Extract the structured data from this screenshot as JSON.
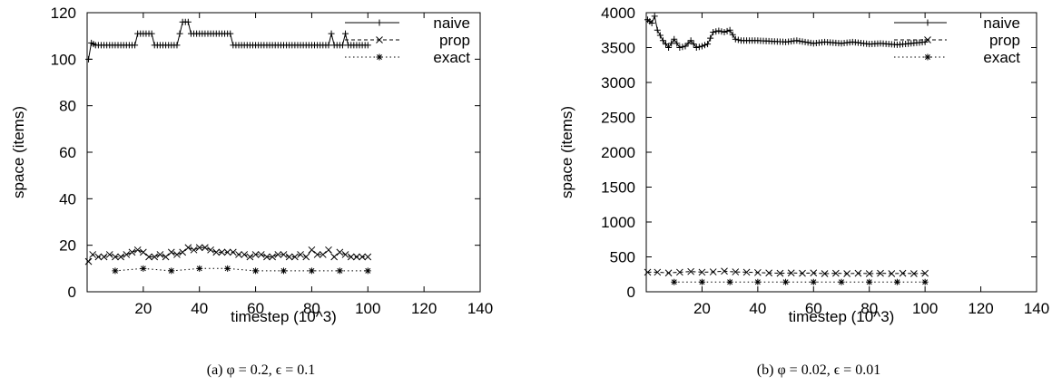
{
  "chart_data": [
    {
      "type": "line",
      "caption": "(a) φ = 0.2, ϵ = 0.1",
      "xlabel": "timestep (10^3)",
      "ylabel": "space (items)",
      "xlim": [
        0,
        140
      ],
      "ylim": [
        0,
        120
      ],
      "xticks": [
        20,
        40,
        60,
        80,
        100,
        120,
        140
      ],
      "yticks": [
        0,
        20,
        40,
        60,
        80,
        100,
        120
      ],
      "grid": false,
      "legend": "top-right",
      "series": [
        {
          "name": "naive",
          "style": "solid-plus",
          "points": [
            [
              0.5,
              100
            ],
            [
              1.5,
              107
            ],
            [
              3,
              106
            ],
            [
              17,
              106
            ],
            [
              18,
              111
            ],
            [
              23,
              111
            ],
            [
              24,
              106
            ],
            [
              32,
              106
            ],
            [
              33,
              111
            ],
            [
              34,
              116
            ],
            [
              36,
              116
            ],
            [
              37,
              111
            ],
            [
              51,
              111
            ],
            [
              52,
              106
            ],
            [
              86,
              106
            ],
            [
              87,
              111
            ],
            [
              88,
              106
            ],
            [
              91,
              106
            ],
            [
              92,
              111
            ],
            [
              93,
              106
            ],
            [
              100,
              106
            ]
          ]
        },
        {
          "name": "prop",
          "style": "dashed-x",
          "points": [
            [
              0.5,
              13
            ],
            [
              2,
              16
            ],
            [
              4,
              15
            ],
            [
              6,
              15
            ],
            [
              8,
              16
            ],
            [
              10,
              15
            ],
            [
              12,
              15
            ],
            [
              14,
              16
            ],
            [
              16,
              17
            ],
            [
              18,
              18
            ],
            [
              20,
              17
            ],
            [
              22,
              15
            ],
            [
              24,
              15
            ],
            [
              26,
              16
            ],
            [
              28,
              15
            ],
            [
              30,
              17
            ],
            [
              32,
              16
            ],
            [
              34,
              17
            ],
            [
              36,
              19
            ],
            [
              38,
              18
            ],
            [
              40,
              19
            ],
            [
              42,
              19
            ],
            [
              44,
              18
            ],
            [
              46,
              17
            ],
            [
              48,
              17
            ],
            [
              50,
              17
            ],
            [
              52,
              17
            ],
            [
              54,
              16
            ],
            [
              56,
              16
            ],
            [
              58,
              15
            ],
            [
              60,
              16
            ],
            [
              62,
              16
            ],
            [
              64,
              15
            ],
            [
              66,
              15
            ],
            [
              68,
              16
            ],
            [
              70,
              16
            ],
            [
              72,
              15
            ],
            [
              74,
              15
            ],
            [
              76,
              16
            ],
            [
              78,
              15
            ],
            [
              80,
              18
            ],
            [
              82,
              16
            ],
            [
              84,
              16
            ],
            [
              86,
              18
            ],
            [
              88,
              15
            ],
            [
              90,
              17
            ],
            [
              92,
              16
            ],
            [
              94,
              15
            ],
            [
              96,
              15
            ],
            [
              98,
              15
            ],
            [
              100,
              15
            ]
          ]
        },
        {
          "name": "exact",
          "style": "dotted-star",
          "points": [
            [
              10,
              9
            ],
            [
              20,
              10
            ],
            [
              30,
              9
            ],
            [
              40,
              10
            ],
            [
              50,
              10
            ],
            [
              60,
              9
            ],
            [
              70,
              9
            ],
            [
              80,
              9
            ],
            [
              90,
              9
            ],
            [
              100,
              9
            ]
          ]
        }
      ]
    },
    {
      "type": "line",
      "caption": "(b) φ = 0.02, ϵ = 0.01",
      "xlabel": "timestep (10^3)",
      "ylabel": "space (items)",
      "xlim": [
        0,
        140
      ],
      "ylim": [
        0,
        4000
      ],
      "xticks": [
        20,
        40,
        60,
        80,
        100,
        120,
        140
      ],
      "yticks": [
        0,
        500,
        1000,
        1500,
        2000,
        2500,
        3000,
        3500,
        4000
      ],
      "grid": false,
      "legend": "top-right",
      "series": [
        {
          "name": "naive",
          "style": "solid-plus",
          "points": [
            [
              0.5,
              3900
            ],
            [
              2,
              3850
            ],
            [
              3,
              3950
            ],
            [
              4,
              3750
            ],
            [
              6,
              3600
            ],
            [
              8,
              3500
            ],
            [
              10,
              3620
            ],
            [
              12,
              3500
            ],
            [
              14,
              3520
            ],
            [
              16,
              3600
            ],
            [
              18,
              3500
            ],
            [
              20,
              3520
            ],
            [
              22,
              3550
            ],
            [
              24,
              3720
            ],
            [
              26,
              3740
            ],
            [
              28,
              3720
            ],
            [
              30,
              3750
            ],
            [
              32,
              3620
            ],
            [
              34,
              3600
            ],
            [
              40,
              3600
            ],
            [
              50,
              3580
            ],
            [
              54,
              3600
            ],
            [
              60,
              3560
            ],
            [
              64,
              3580
            ],
            [
              70,
              3560
            ],
            [
              74,
              3580
            ],
            [
              80,
              3550
            ],
            [
              84,
              3560
            ],
            [
              90,
              3540
            ],
            [
              95,
              3560
            ],
            [
              100,
              3580
            ]
          ]
        },
        {
          "name": "prop",
          "style": "dashed-x",
          "points": [
            [
              0.5,
              280
            ],
            [
              4,
              280
            ],
            [
              8,
              270
            ],
            [
              12,
              280
            ],
            [
              16,
              290
            ],
            [
              20,
              280
            ],
            [
              24,
              285
            ],
            [
              28,
              295
            ],
            [
              32,
              285
            ],
            [
              36,
              280
            ],
            [
              40,
              275
            ],
            [
              44,
              270
            ],
            [
              48,
              265
            ],
            [
              52,
              270
            ],
            [
              56,
              265
            ],
            [
              60,
              270
            ],
            [
              64,
              260
            ],
            [
              68,
              265
            ],
            [
              72,
              260
            ],
            [
              76,
              265
            ],
            [
              80,
              260
            ],
            [
              84,
              265
            ],
            [
              88,
              260
            ],
            [
              92,
              265
            ],
            [
              96,
              260
            ],
            [
              100,
              265
            ]
          ]
        },
        {
          "name": "exact",
          "style": "dotted-star",
          "points": [
            [
              10,
              140
            ],
            [
              20,
              140
            ],
            [
              30,
              140
            ],
            [
              40,
              140
            ],
            [
              50,
              140
            ],
            [
              60,
              140
            ],
            [
              70,
              140
            ],
            [
              80,
              140
            ],
            [
              90,
              140
            ],
            [
              100,
              140
            ]
          ]
        }
      ]
    }
  ]
}
